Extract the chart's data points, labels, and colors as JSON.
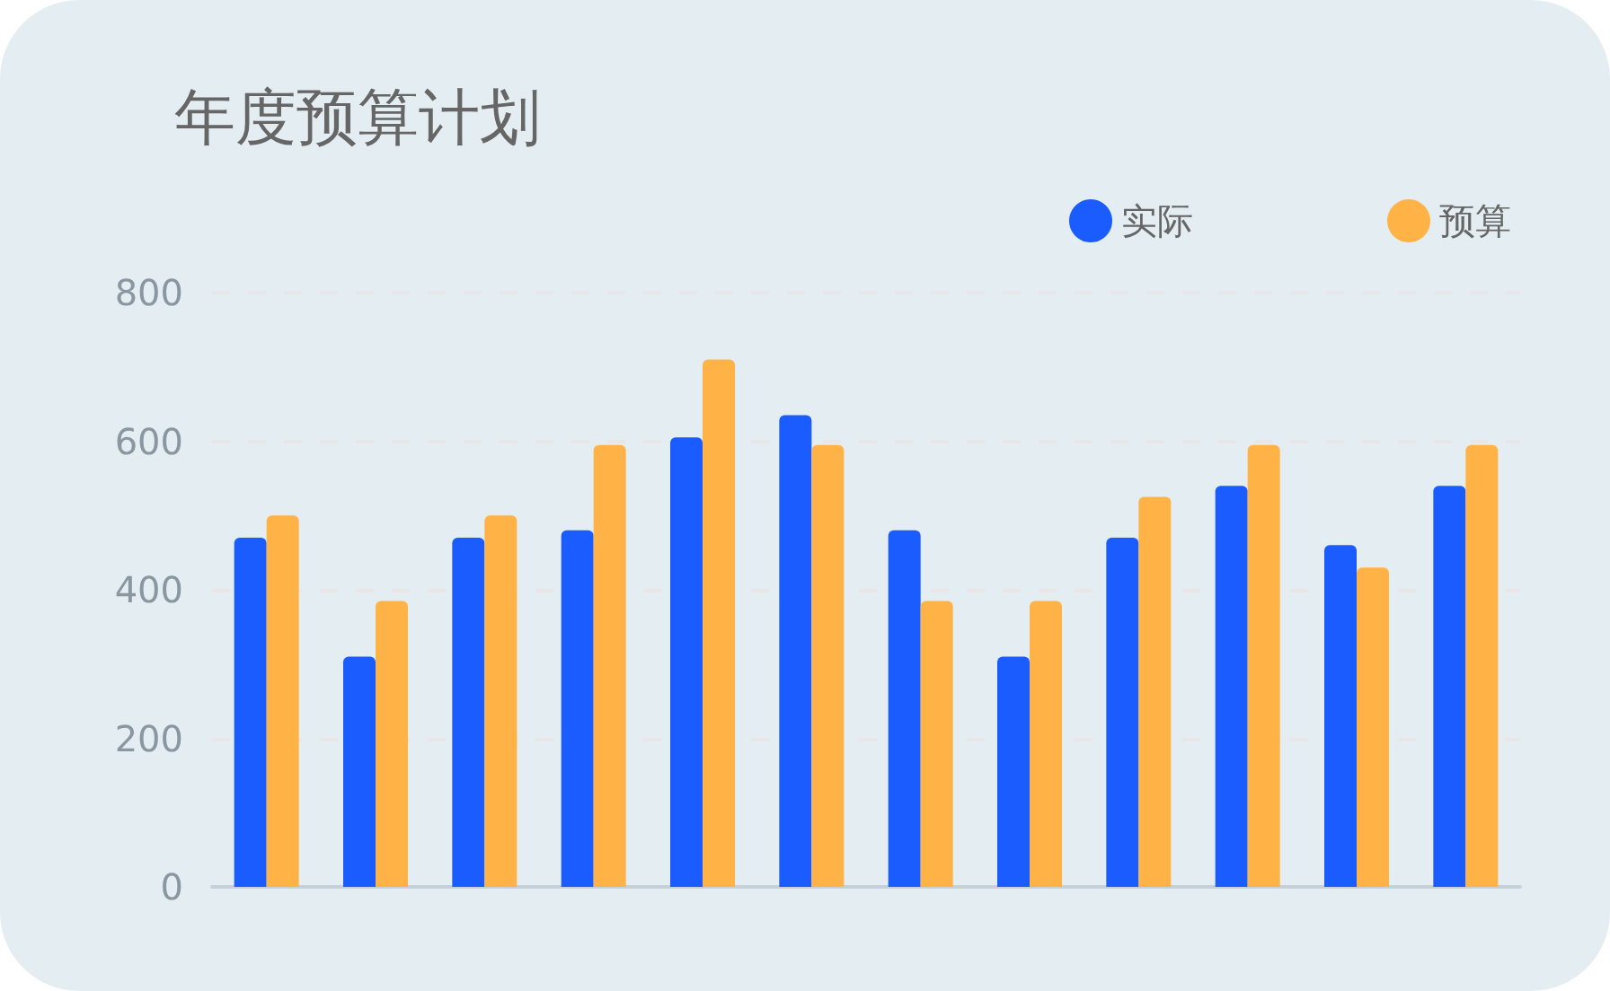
{
  "chart_data": {
    "type": "bar",
    "title": "年度预算计划",
    "categories": [
      null,
      null,
      null,
      null,
      null,
      null,
      null,
      null,
      null,
      null,
      null,
      null
    ],
    "series": [
      {
        "name": "实际",
        "color": "#1a5cff",
        "values": [
          470,
          310,
          470,
          480,
          605,
          635,
          480,
          310,
          470,
          540,
          460,
          540
        ]
      },
      {
        "name": "预算",
        "color": "#ffb347",
        "values": [
          500,
          385,
          500,
          595,
          710,
          595,
          385,
          385,
          525,
          595,
          430,
          595
        ]
      }
    ],
    "ylim": [
      0,
      800
    ],
    "yticks": [
      0,
      200,
      400,
      600,
      800
    ],
    "grid": "y",
    "legend": "top right"
  }
}
